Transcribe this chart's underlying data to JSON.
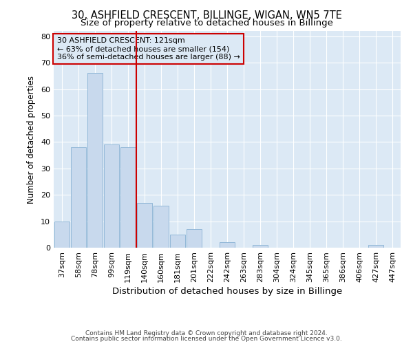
{
  "title1": "30, ASHFIELD CRESCENT, BILLINGE, WIGAN, WN5 7TE",
  "title2": "Size of property relative to detached houses in Billinge",
  "xlabel": "Distribution of detached houses by size in Billinge",
  "ylabel": "Number of detached properties",
  "categories": [
    "37sqm",
    "58sqm",
    "78sqm",
    "99sqm",
    "119sqm",
    "140sqm",
    "160sqm",
    "181sqm",
    "201sqm",
    "222sqm",
    "242sqm",
    "263sqm",
    "283sqm",
    "304sqm",
    "324sqm",
    "345sqm",
    "365sqm",
    "386sqm",
    "406sqm",
    "427sqm",
    "447sqm"
  ],
  "values": [
    10,
    38,
    66,
    39,
    38,
    17,
    16,
    5,
    7,
    0,
    2,
    0,
    1,
    0,
    0,
    0,
    0,
    0,
    0,
    1,
    0
  ],
  "bar_color": "#c8d9ed",
  "bar_edge_color": "#93b8d8",
  "property_line_x": 4.5,
  "red_line_color": "#cc0000",
  "annotation_text1": "30 ASHFIELD CRESCENT: 121sqm",
  "annotation_text2": "← 63% of detached houses are smaller (154)",
  "annotation_text3": "36% of semi-detached houses are larger (88) →",
  "annotation_box_edge_color": "#cc0000",
  "background_color": "#ffffff",
  "plot_bg_color": "#dce9f5",
  "grid_color": "#ffffff",
  "footer1": "Contains HM Land Registry data © Crown copyright and database right 2024.",
  "footer2": "Contains public sector information licensed under the Open Government Licence v3.0.",
  "ylim": [
    0,
    82
  ],
  "title1_fontsize": 10.5,
  "title2_fontsize": 9.5,
  "xlabel_fontsize": 9.5,
  "ylabel_fontsize": 8.5,
  "tick_fontsize": 8,
  "annotation_fontsize": 8,
  "footer_fontsize": 6.5
}
